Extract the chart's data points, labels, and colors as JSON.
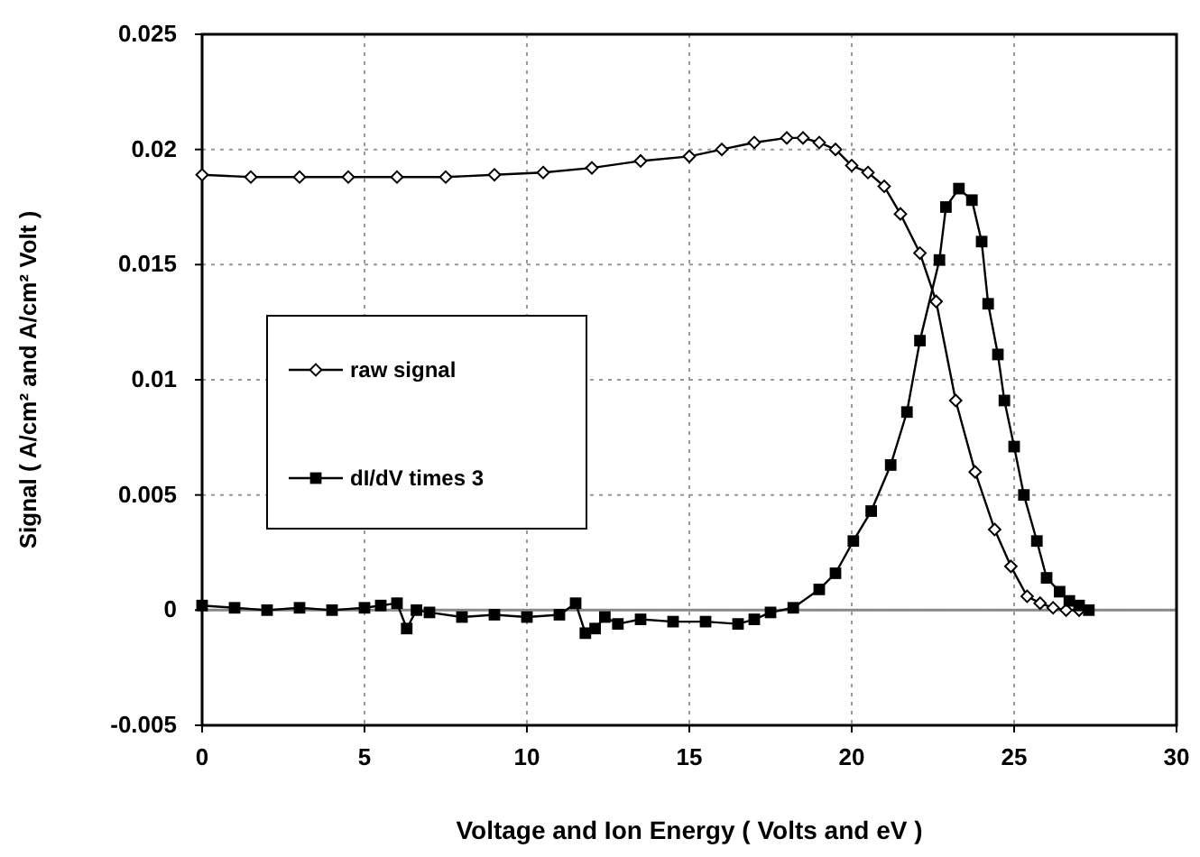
{
  "chart_data": {
    "type": "line",
    "xlabel": "Voltage and Ion Energy  ( Volts and eV )",
    "ylabel": "Signal  ( A/cm² and A/cm² Volt )",
    "xlim": [
      0,
      30
    ],
    "xticks": [
      0,
      5,
      10,
      15,
      20,
      25,
      30
    ],
    "ylim": [
      -0.005,
      0.025
    ],
    "yticks": [
      -0.005,
      0,
      0.005,
      0.01,
      0.015,
      0.02,
      0.025
    ],
    "grid": true,
    "legend": "left",
    "series": [
      {
        "name": "raw signal",
        "color": "#000000",
        "marker": "diamond",
        "x": [
          0,
          1.5,
          3,
          4.5,
          6,
          7.5,
          9,
          10.5,
          12,
          13.5,
          15,
          16,
          17,
          18,
          18.5,
          19,
          19.5,
          20,
          20.5,
          21,
          21.5,
          22.1,
          22.6,
          23.2,
          23.8,
          24.4,
          24.9,
          25.4,
          25.8,
          26.2,
          26.6,
          27
        ],
        "values": [
          0.0189,
          0.0188,
          0.0188,
          0.0188,
          0.0188,
          0.0188,
          0.0189,
          0.019,
          0.0192,
          0.0195,
          0.0197,
          0.02,
          0.0203,
          0.0205,
          0.0205,
          0.0203,
          0.02,
          0.0193,
          0.019,
          0.0184,
          0.0172,
          0.0155,
          0.0134,
          0.0091,
          0.006,
          0.0035,
          0.0019,
          0.0006,
          0.0003,
          0.0001,
          0,
          0
        ]
      },
      {
        "name": "dI/dV times 3",
        "color": "#000000",
        "marker": "square",
        "x": [
          0,
          1,
          2,
          3,
          4,
          5,
          5.5,
          6,
          6.3,
          6.6,
          7,
          8,
          9,
          10,
          11,
          11.5,
          11.8,
          12.1,
          12.4,
          12.8,
          13.5,
          14.5,
          15.5,
          16.5,
          17,
          17.5,
          18.2,
          19,
          19.5,
          20.05,
          20.6,
          21.2,
          21.7,
          22.1,
          22.7,
          22.9,
          23.3,
          23.7,
          24,
          24.2,
          24.5,
          24.7,
          25,
          25.3,
          25.7,
          26,
          26.4,
          26.7,
          27,
          27.3
        ],
        "values": [
          0.0002,
          0.0001,
          0,
          0.0001,
          0,
          0.0001,
          0.0002,
          0.0003,
          -0.0008,
          0,
          -0.0001,
          -0.0003,
          -0.0002,
          -0.0003,
          -0.0002,
          0.0003,
          -0.001,
          -0.0008,
          -0.0003,
          -0.0006,
          -0.0004,
          -0.0005,
          -0.0005,
          -0.0006,
          -0.0004,
          -0.0001,
          0.0001,
          0.0009,
          0.0016,
          0.003,
          0.0043,
          0.0063,
          0.0086,
          0.0117,
          0.0152,
          0.0175,
          0.0183,
          0.0178,
          0.016,
          0.0133,
          0.0111,
          0.0091,
          0.0071,
          0.005,
          0.003,
          0.0014,
          0.0008,
          0.0004,
          0.0002,
          0
        ]
      }
    ]
  }
}
